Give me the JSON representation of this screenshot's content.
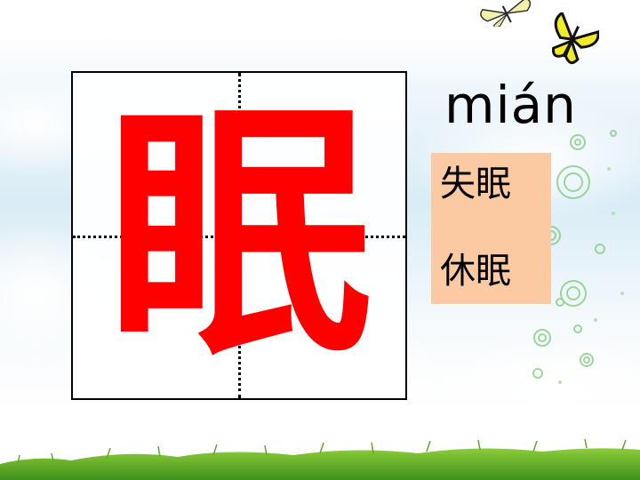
{
  "character": "眠",
  "pinyin": "mián",
  "words": [
    "失眠",
    "休眠"
  ],
  "colors": {
    "character": "#ff0000",
    "word_box": "#fccaa2"
  }
}
